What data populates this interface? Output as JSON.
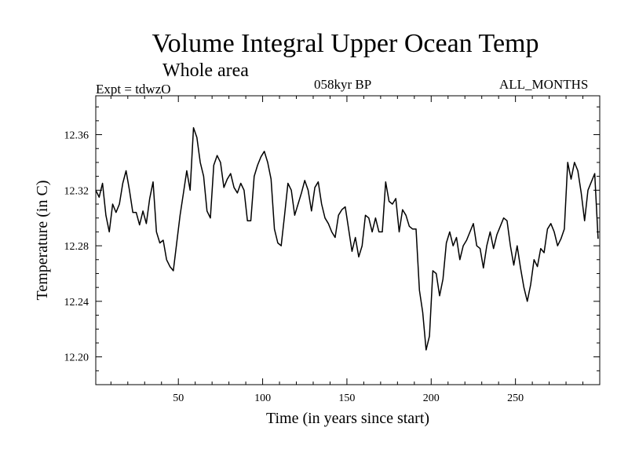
{
  "chart_data": {
    "type": "line",
    "title": "Volume Integral Upper Ocean Temp",
    "subtitle": "Whole area",
    "header_left": "Expt = tdwzO",
    "header_center": "058kyr BP",
    "header_right": "ALL_MONTHS",
    "xlabel": "Time (in years since start)",
    "ylabel": "Temperature (in C)",
    "xlim": [
      1,
      300
    ],
    "ylim": [
      12.18,
      12.388
    ],
    "xticks": [
      50,
      100,
      150,
      200,
      250
    ],
    "yticks": [
      12.2,
      12.24,
      12.28,
      12.32,
      12.36
    ],
    "ytick_labels": [
      "12.20",
      "12.24",
      "12.28",
      "12.32",
      "12.36"
    ],
    "grid": false,
    "line_color": "#000000",
    "series": [
      {
        "x": [
          1,
          3,
          5,
          7,
          9,
          11,
          13,
          15,
          17,
          19,
          21,
          23,
          25,
          27,
          29,
          31,
          33,
          35,
          37,
          39,
          41,
          43,
          45,
          47,
          49,
          51,
          53,
          55,
          57,
          59,
          61,
          63,
          65,
          67,
          69,
          71,
          73,
          75,
          77,
          79,
          81,
          83,
          85,
          87,
          89,
          91,
          93,
          95,
          97,
          99,
          101,
          103,
          105,
          107,
          109,
          111,
          113,
          115,
          117,
          119,
          121,
          123,
          125,
          127,
          129,
          131,
          133,
          135,
          137,
          139,
          141,
          143,
          145,
          147,
          149,
          151,
          153,
          155,
          157,
          159,
          161,
          163,
          165,
          167,
          169,
          171,
          173,
          175,
          177,
          179,
          181,
          183,
          185,
          187,
          189,
          191,
          193,
          195,
          197,
          199,
          201,
          203,
          205,
          207,
          209,
          211,
          213,
          215,
          217,
          219,
          221,
          223,
          225,
          227,
          229,
          231,
          233,
          235,
          237,
          239,
          241,
          243,
          245,
          247,
          249,
          251,
          253,
          255,
          257,
          259,
          261,
          263,
          265,
          267,
          269,
          271,
          273,
          275,
          277,
          279,
          281,
          283,
          285,
          287,
          289,
          291,
          293,
          295,
          297,
          299
        ],
        "values": [
          12.32,
          12.315,
          12.325,
          12.302,
          12.29,
          12.31,
          12.304,
          12.31,
          12.325,
          12.334,
          12.32,
          12.304,
          12.304,
          12.295,
          12.305,
          12.296,
          12.314,
          12.326,
          12.29,
          12.282,
          12.284,
          12.27,
          12.265,
          12.262,
          12.282,
          12.302,
          12.318,
          12.334,
          12.32,
          12.365,
          12.358,
          12.34,
          12.33,
          12.305,
          12.3,
          12.338,
          12.345,
          12.34,
          12.322,
          12.328,
          12.332,
          12.322,
          12.318,
          12.325,
          12.32,
          12.298,
          12.298,
          12.33,
          12.338,
          12.344,
          12.348,
          12.34,
          12.328,
          12.292,
          12.282,
          12.28,
          12.302,
          12.325,
          12.32,
          12.302,
          12.31,
          12.318,
          12.327,
          12.32,
          12.305,
          12.322,
          12.326,
          12.31,
          12.3,
          12.296,
          12.29,
          12.286,
          12.302,
          12.306,
          12.308,
          12.292,
          12.276,
          12.286,
          12.272,
          12.28,
          12.302,
          12.3,
          12.29,
          12.3,
          12.29,
          12.29,
          12.326,
          12.312,
          12.31,
          12.314,
          12.29,
          12.306,
          12.302,
          12.294,
          12.292,
          12.292,
          12.248,
          12.232,
          12.205,
          12.215,
          12.262,
          12.26,
          12.244,
          12.256,
          12.282,
          12.29,
          12.28,
          12.286,
          12.27,
          12.28,
          12.284,
          12.29,
          12.296,
          12.28,
          12.278,
          12.264,
          12.28,
          12.29,
          12.278,
          12.288,
          12.294,
          12.3,
          12.298,
          12.28,
          12.266,
          12.28,
          12.264,
          12.25,
          12.24,
          12.252,
          12.27,
          12.265,
          12.278,
          12.275,
          12.292,
          12.296,
          12.29,
          12.28,
          12.285,
          12.292,
          12.34,
          12.328,
          12.34,
          12.334,
          12.318,
          12.298,
          12.32,
          12.326,
          12.332,
          12.285
        ]
      }
    ]
  }
}
